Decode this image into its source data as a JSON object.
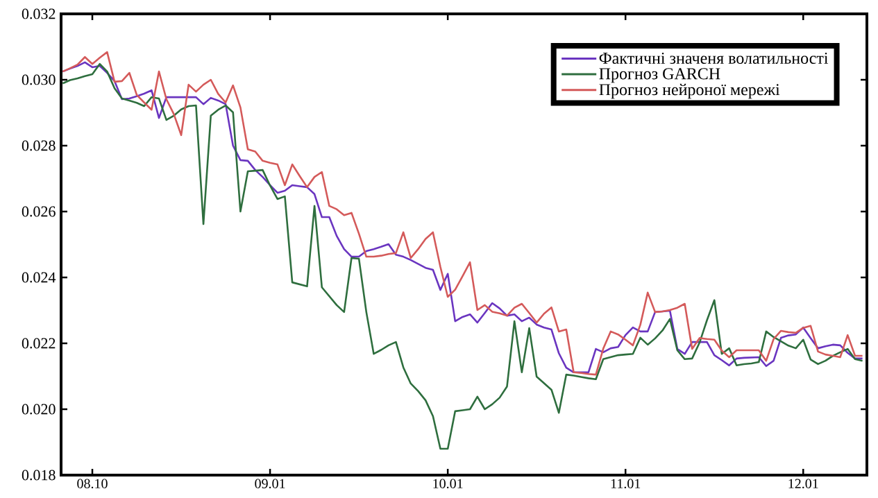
{
  "chart_data": {
    "type": "line",
    "categories": [
      null,
      null,
      null,
      null,
      "08.10",
      null,
      null,
      null,
      null,
      null,
      null,
      null,
      null,
      null,
      null,
      null,
      null,
      null,
      null,
      null,
      null,
      null,
      null,
      null,
      null,
      null,
      null,
      null,
      "09.01",
      null,
      null,
      null,
      null,
      null,
      null,
      null,
      null,
      null,
      null,
      null,
      null,
      null,
      null,
      null,
      null,
      null,
      null,
      null,
      null,
      null,
      null,
      null,
      "10.01",
      null,
      null,
      null,
      null,
      null,
      null,
      null,
      null,
      null,
      null,
      null,
      null,
      null,
      null,
      null,
      null,
      null,
      null,
      null,
      null,
      null,
      null,
      null,
      "11.01",
      null,
      null,
      null,
      null,
      null,
      null,
      null,
      null,
      null,
      null,
      null,
      null,
      null,
      null,
      null,
      null,
      null,
      null,
      null,
      null,
      null,
      null,
      null,
      "12.01",
      null,
      null,
      null,
      null,
      null,
      null,
      null,
      null
    ],
    "ylim": [
      0.018,
      0.032
    ],
    "yticks": [
      {
        "value": 0.018,
        "label": "0.018"
      },
      {
        "value": 0.02,
        "label": "0.020"
      },
      {
        "value": 0.022,
        "label": "0.022"
      },
      {
        "value": 0.024,
        "label": "0.024"
      },
      {
        "value": 0.026,
        "label": "0.026"
      },
      {
        "value": 0.028,
        "label": "0.028"
      },
      {
        "value": 0.03,
        "label": "0.030"
      },
      {
        "value": 0.032,
        "label": "0.032"
      }
    ],
    "legend": "top right",
    "series": [
      {
        "name": "Фактичні значеня волатильності",
        "color": "#6a35c0",
        "values": [
          0.03025,
          0.03034,
          0.03042,
          0.03053,
          0.03038,
          0.03042,
          0.03021,
          0.02996,
          0.02941,
          0.02943,
          0.0295,
          0.02958,
          0.02968,
          0.02884,
          0.02947,
          0.02947,
          0.02947,
          0.02947,
          0.02947,
          0.02926,
          0.02945,
          0.02937,
          0.02926,
          0.028,
          0.02756,
          0.02754,
          0.02726,
          0.02705,
          0.0268,
          0.02657,
          0.02663,
          0.0268,
          0.02677,
          0.02674,
          0.02653,
          0.02583,
          0.02583,
          0.02526,
          0.02486,
          0.02463,
          0.02463,
          0.0248,
          0.02486,
          0.02493,
          0.02501,
          0.02469,
          0.02463,
          0.02453,
          0.02441,
          0.02429,
          0.02423,
          0.02362,
          0.02411,
          0.02267,
          0.0228,
          0.02288,
          0.02263,
          0.02292,
          0.02322,
          0.02306,
          0.02284,
          0.02288,
          0.02267,
          0.02278,
          0.02257,
          0.02248,
          0.02242,
          0.0217,
          0.02126,
          0.02112,
          0.02112,
          0.02112,
          0.02183,
          0.02173,
          0.02185,
          0.02189,
          0.02225,
          0.02248,
          0.02236,
          0.02236,
          0.02295,
          0.02297,
          0.02299,
          0.02183,
          0.02168,
          0.02204,
          0.02204,
          0.02204,
          0.02164,
          0.02149,
          0.02133,
          0.02154,
          0.02156,
          0.02157,
          0.02158,
          0.02131,
          0.02147,
          0.02217,
          0.02224,
          0.02227,
          0.02248,
          0.02216,
          0.02185,
          0.02191,
          0.02196,
          0.02194,
          0.02171,
          0.02154,
          0.02154
        ]
      },
      {
        "name": "Прогноз GARCH",
        "color": "#2e6e3e",
        "values": [
          0.02989,
          0.02999,
          0.03004,
          0.03011,
          0.03017,
          0.03048,
          0.03025,
          0.02974,
          0.02943,
          0.02937,
          0.0293,
          0.0292,
          0.02947,
          0.02943,
          0.02878,
          0.02891,
          0.0291,
          0.0292,
          0.02922,
          0.02562,
          0.02891,
          0.02909,
          0.02922,
          0.02901,
          0.026,
          0.02722,
          0.02724,
          0.02726,
          0.02679,
          0.02638,
          0.02646,
          0.02385,
          0.02379,
          0.02373,
          0.02617,
          0.0237,
          0.02343,
          0.02316,
          0.02295,
          0.02459,
          0.02457,
          0.02295,
          0.02168,
          0.0218,
          0.02194,
          0.02204,
          0.02127,
          0.02078,
          0.02055,
          0.02027,
          0.01979,
          0.0188,
          0.0188,
          0.01994,
          0.01997,
          0.02,
          0.02038,
          0.02,
          0.02015,
          0.02035,
          0.02069,
          0.02267,
          0.02112,
          0.02246,
          0.02099,
          0.02079,
          0.02059,
          0.01989,
          0.02105,
          0.02102,
          0.02098,
          0.02094,
          0.02091,
          0.02152,
          0.02158,
          0.02164,
          0.02166,
          0.02168,
          0.02217,
          0.02196,
          0.02215,
          0.02239,
          0.02274,
          0.02179,
          0.02152,
          0.02154,
          0.02202,
          0.0227,
          0.02331,
          0.02168,
          0.02185,
          0.02133,
          0.02137,
          0.02139,
          0.02143,
          0.02236,
          0.02219,
          0.02206,
          0.02193,
          0.02185,
          0.02211,
          0.02151,
          0.02137,
          0.02147,
          0.02162,
          0.02173,
          0.02183,
          0.02152,
          0.02147
        ]
      },
      {
        "name": "Прогноз нейроної мережі",
        "color": "#d45a5a",
        "values": [
          0.03025,
          0.03035,
          0.03046,
          0.03069,
          0.03048,
          0.03067,
          0.03084,
          0.02994,
          0.02996,
          0.03021,
          0.02954,
          0.02931,
          0.02909,
          0.03025,
          0.02941,
          0.02896,
          0.02832,
          0.02985,
          0.02964,
          0.02985,
          0.03,
          0.02957,
          0.02931,
          0.02983,
          0.02916,
          0.02789,
          0.02782,
          0.02754,
          0.02748,
          0.02743,
          0.0268,
          0.02743,
          0.02708,
          0.02674,
          0.02705,
          0.0272,
          0.02617,
          0.02607,
          0.02589,
          0.02596,
          0.02533,
          0.02463,
          0.02463,
          0.02466,
          0.02471,
          0.02474,
          0.02537,
          0.02459,
          0.02486,
          0.02517,
          0.02537,
          0.02432,
          0.02341,
          0.02363,
          0.02404,
          0.02446,
          0.02301,
          0.02316,
          0.02296,
          0.02291,
          0.02284,
          0.02308,
          0.0232,
          0.02292,
          0.02263,
          0.0229,
          0.02309,
          0.02236,
          0.02242,
          0.02112,
          0.0211,
          0.02107,
          0.02105,
          0.02184,
          0.02236,
          0.02227,
          0.02211,
          0.02194,
          0.02256,
          0.02354,
          0.02295,
          0.02297,
          0.02301,
          0.02308,
          0.0232,
          0.02183,
          0.02216,
          0.02213,
          0.02211,
          0.02178,
          0.02158,
          0.02179,
          0.02179,
          0.02179,
          0.02179,
          0.02147,
          0.02213,
          0.02238,
          0.02234,
          0.02232,
          0.02247,
          0.02253,
          0.02175,
          0.02166,
          0.02162,
          0.02158,
          0.02225,
          0.02162,
          0.02162
        ]
      }
    ]
  }
}
